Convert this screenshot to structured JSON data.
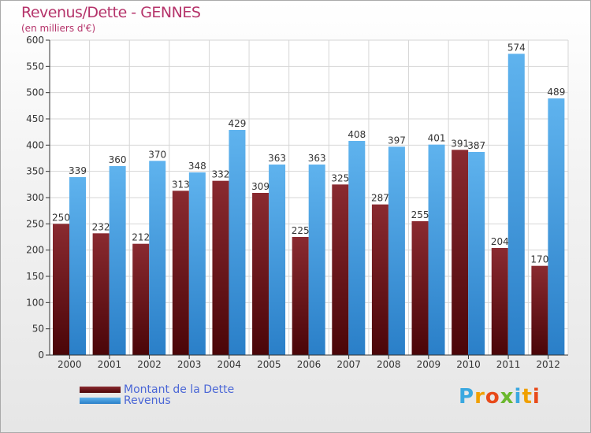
{
  "header": {
    "title": "Revenus/Dette - GENNES",
    "subtitle": "(en milliers d'€)"
  },
  "legend": {
    "items": [
      {
        "label": "Montant de la Dette",
        "color": "#6b0f14"
      },
      {
        "label": "Revenus",
        "color": "#4aa3e6"
      }
    ]
  },
  "logo": {
    "letters": [
      {
        "char": "P",
        "color": "#3aa8e0"
      },
      {
        "char": "r",
        "color": "#f0a000"
      },
      {
        "char": "o",
        "color": "#e84a1a"
      },
      {
        "char": "x",
        "color": "#6bb82e"
      },
      {
        "char": "i",
        "color": "#3aa8e0"
      },
      {
        "char": "t",
        "color": "#f0a000"
      },
      {
        "char": "i",
        "color": "#e84a1a"
      }
    ]
  },
  "chart_data": {
    "type": "bar",
    "title": "Revenus/Dette - GENNES",
    "ylabel": "(en milliers d'€)",
    "xlabel": "",
    "ylim": [
      0,
      600
    ],
    "yticks": [
      0,
      50,
      100,
      150,
      200,
      250,
      300,
      350,
      400,
      450,
      500,
      550,
      600
    ],
    "grid": true,
    "categories": [
      "2000",
      "2001",
      "2002",
      "2003",
      "2004",
      "2005",
      "2006",
      "2007",
      "2008",
      "2009",
      "2010",
      "2011",
      "2012"
    ],
    "series": [
      {
        "name": "Montant de la Dette",
        "color": "#6b0f14",
        "values": [
          250,
          232,
          212,
          313,
          332,
          309,
          225,
          325,
          287,
          255,
          391,
          204,
          170
        ]
      },
      {
        "name": "Revenus",
        "color": "#4aa3e6",
        "values": [
          339,
          360,
          370,
          348,
          429,
          363,
          363,
          408,
          397,
          401,
          387,
          574,
          489
        ]
      }
    ]
  }
}
